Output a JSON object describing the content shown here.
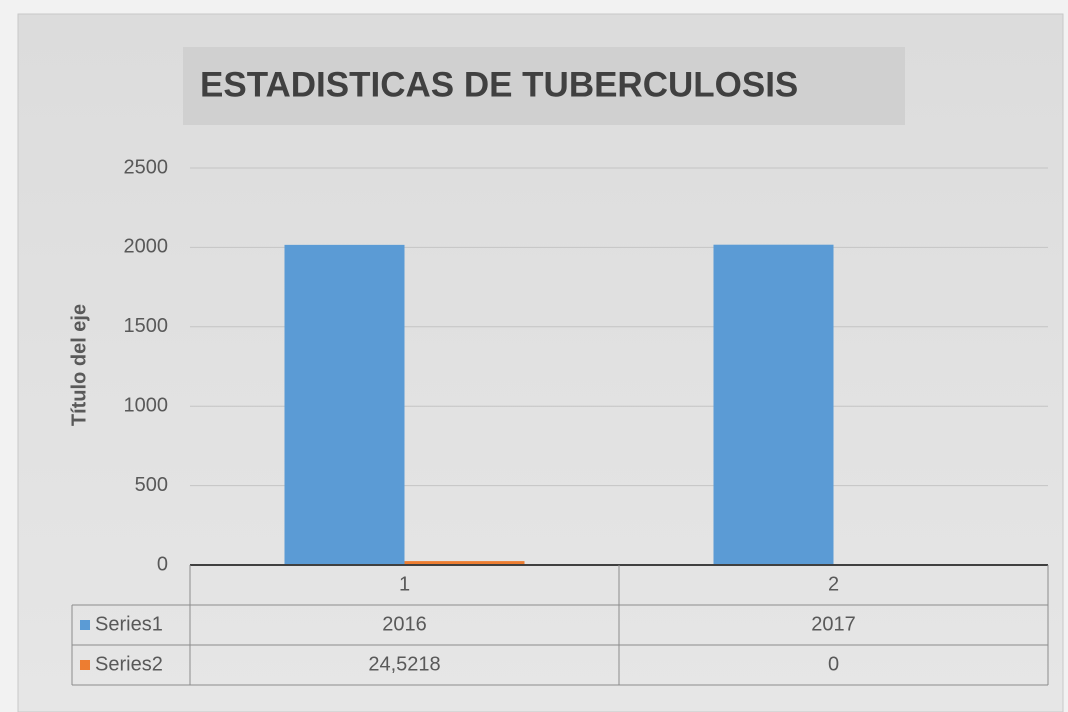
{
  "chart_data": {
    "type": "bar",
    "title": "ESTADISTICAS DE TUBERCULOSIS",
    "y_label": "Título del eje",
    "categories": [
      "1",
      "2"
    ],
    "series": [
      {
        "name": "Series1",
        "color": "#5b9bd5",
        "values": [
          2016,
          2017
        ]
      },
      {
        "name": "Series2",
        "color": "#ed7d31",
        "values": [
          24.5218,
          0
        ],
        "value_labels": [
          "24,5218",
          "0"
        ]
      }
    ],
    "ylim": [
      0,
      2500
    ],
    "yticks": [
      0,
      500,
      1000,
      1500,
      2000,
      2500
    ],
    "grid": true,
    "data_table": true
  }
}
